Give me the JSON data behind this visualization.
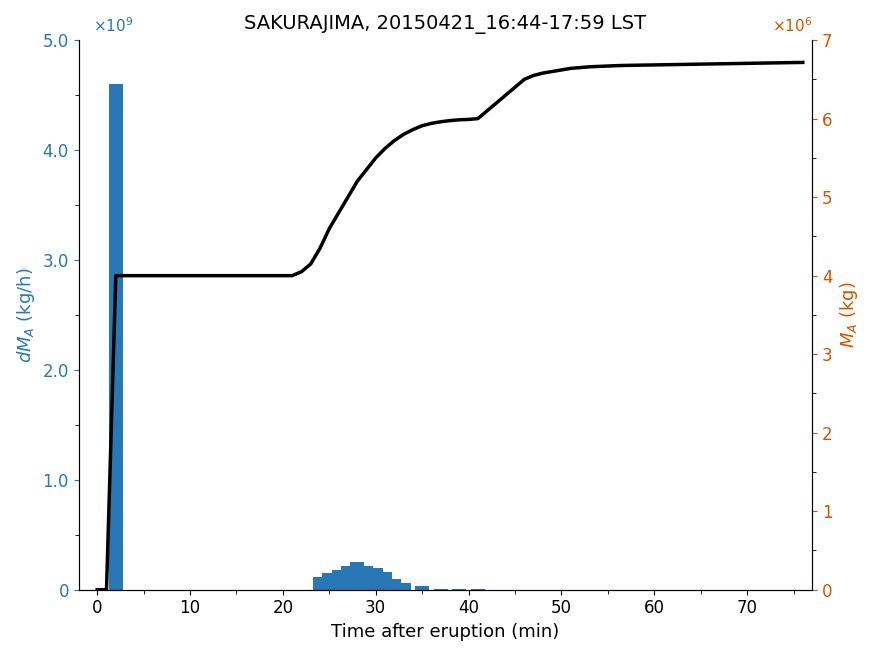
{
  "title": "SAKURAJIMA, 20150421_16:44-17:59 LST",
  "xlabel": "Time after eruption (min)",
  "ylabel_left": "dM_A (kg/h)",
  "ylabel_right": "M_A (kg)",
  "bar_color": "#2878b5",
  "line_color": "#000000",
  "bar_x": [
    -1,
    0,
    1,
    2,
    3,
    5,
    7,
    9,
    11,
    13,
    15,
    17,
    19,
    21,
    23,
    24,
    25,
    26,
    27,
    28,
    29,
    30,
    31,
    32,
    33,
    35,
    37,
    39,
    41,
    43,
    45,
    47,
    49,
    51,
    53,
    55,
    57,
    59,
    61,
    63,
    65,
    67,
    69,
    71,
    73,
    75
  ],
  "bar_heights": [
    0,
    0,
    0,
    4600000000.0,
    0,
    0,
    0,
    0,
    0,
    0,
    0,
    0,
    0,
    0,
    0,
    120000000.0,
    150000000.0,
    180000000.0,
    220000000.0,
    250000000.0,
    220000000.0,
    200000000.0,
    160000000.0,
    100000000.0,
    60000000.0,
    30000000.0,
    10000000.0,
    5000000.0,
    3000000.0,
    2000000.0,
    1000000.0,
    500000.0,
    300000.0,
    200000.0,
    100000.0,
    50000.0,
    30000.0,
    20000.0,
    10000.0,
    5000.0,
    3000.0,
    2000.0,
    1000.0,
    500.0,
    300.0,
    100.0
  ],
  "line_x": [
    0,
    1,
    2,
    3,
    4,
    5,
    6,
    7,
    8,
    9,
    10,
    11,
    12,
    13,
    14,
    15,
    16,
    17,
    18,
    19,
    20,
    21,
    22,
    23,
    24,
    25,
    26,
    27,
    28,
    29,
    30,
    31,
    32,
    33,
    34,
    35,
    36,
    37,
    38,
    39,
    40,
    41,
    42,
    43,
    44,
    45,
    46,
    47,
    48,
    49,
    50,
    51,
    52,
    53,
    54,
    55,
    56,
    57,
    58,
    59,
    60,
    61,
    62,
    63,
    64,
    65,
    66,
    67,
    68,
    69,
    70,
    71,
    72,
    73,
    74,
    75,
    76
  ],
  "line_y": [
    0,
    0,
    4000000,
    4000000,
    4000000,
    4000000,
    4000000,
    4000000,
    4000000,
    4000000,
    4000000,
    4000000,
    4000000,
    4000000,
    4000000,
    4000000,
    4000000,
    4000000,
    4000000,
    4000000,
    4000000,
    4000000,
    4050000,
    4150000,
    4350000,
    4600000,
    4800000,
    5000000,
    5200000,
    5350000,
    5500000,
    5620000,
    5720000,
    5800000,
    5860000,
    5910000,
    5940000,
    5960000,
    5975000,
    5985000,
    5990000,
    6000000,
    6100000,
    6200000,
    6300000,
    6400000,
    6500000,
    6550000,
    6580000,
    6600000,
    6620000,
    6640000,
    6650000,
    6660000,
    6665000,
    6670000,
    6675000,
    6678000,
    6680000,
    6682000,
    6684000,
    6686000,
    6688000,
    6690000,
    6692000,
    6694000,
    6696000,
    6698000,
    6700000,
    6702000,
    6704000,
    6706000,
    6708000,
    6710000,
    6712000,
    6714000,
    6716000
  ],
  "xlim": [
    -2,
    77
  ],
  "ylim_left": [
    0,
    5000000000.0
  ],
  "ylim_right": [
    0,
    7000000.0
  ],
  "bar_width": 1.5,
  "title_fontsize": 14,
  "label_fontsize": 13,
  "tick_fontsize": 12
}
